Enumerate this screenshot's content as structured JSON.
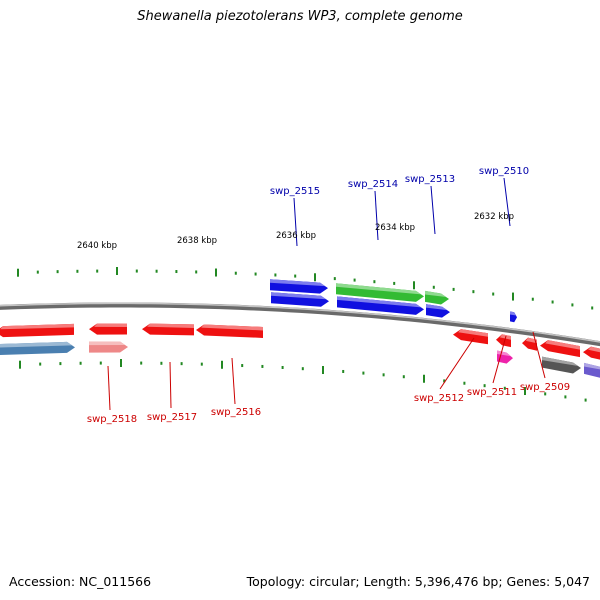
{
  "title": "Shewanella piezotolerans WP3, complete genome",
  "footer": {
    "accession": "Accession: NC_011566",
    "summary": "Topology: circular; Length: 5,396,476 bp; Genes: 5,047"
  },
  "colors": {
    "blue": "#1010e0",
    "green": "#33bb33",
    "red": "#ee1111",
    "steel": "#4a7fb0",
    "pink": "#ee8888",
    "magenta": "#ee22aa",
    "gray": "#555555",
    "slate": "#6a5acd",
    "tick": "#228822",
    "backbone": "#888888",
    "label_blue": "#0000aa",
    "label_red": "#cc0000"
  },
  "kbp_labels": [
    "2640 kbp",
    "2638 kbp",
    "2636 kbp",
    "2634 kbp",
    "2632 kbp"
  ],
  "gene_labels": [
    {
      "name": "swp_2515",
      "strand": "top"
    },
    {
      "name": "swp_2514",
      "strand": "top"
    },
    {
      "name": "swp_2513",
      "strand": "top"
    },
    {
      "name": "swp_2510",
      "strand": "top"
    },
    {
      "name": "swp_2518",
      "strand": "bottom"
    },
    {
      "name": "swp_2517",
      "strand": "bottom"
    },
    {
      "name": "swp_2516",
      "strand": "bottom"
    },
    {
      "name": "swp_2512",
      "strand": "bottom"
    },
    {
      "name": "swp_2511",
      "strand": "bottom"
    },
    {
      "name": "swp_2509",
      "strand": "bottom"
    }
  ]
}
